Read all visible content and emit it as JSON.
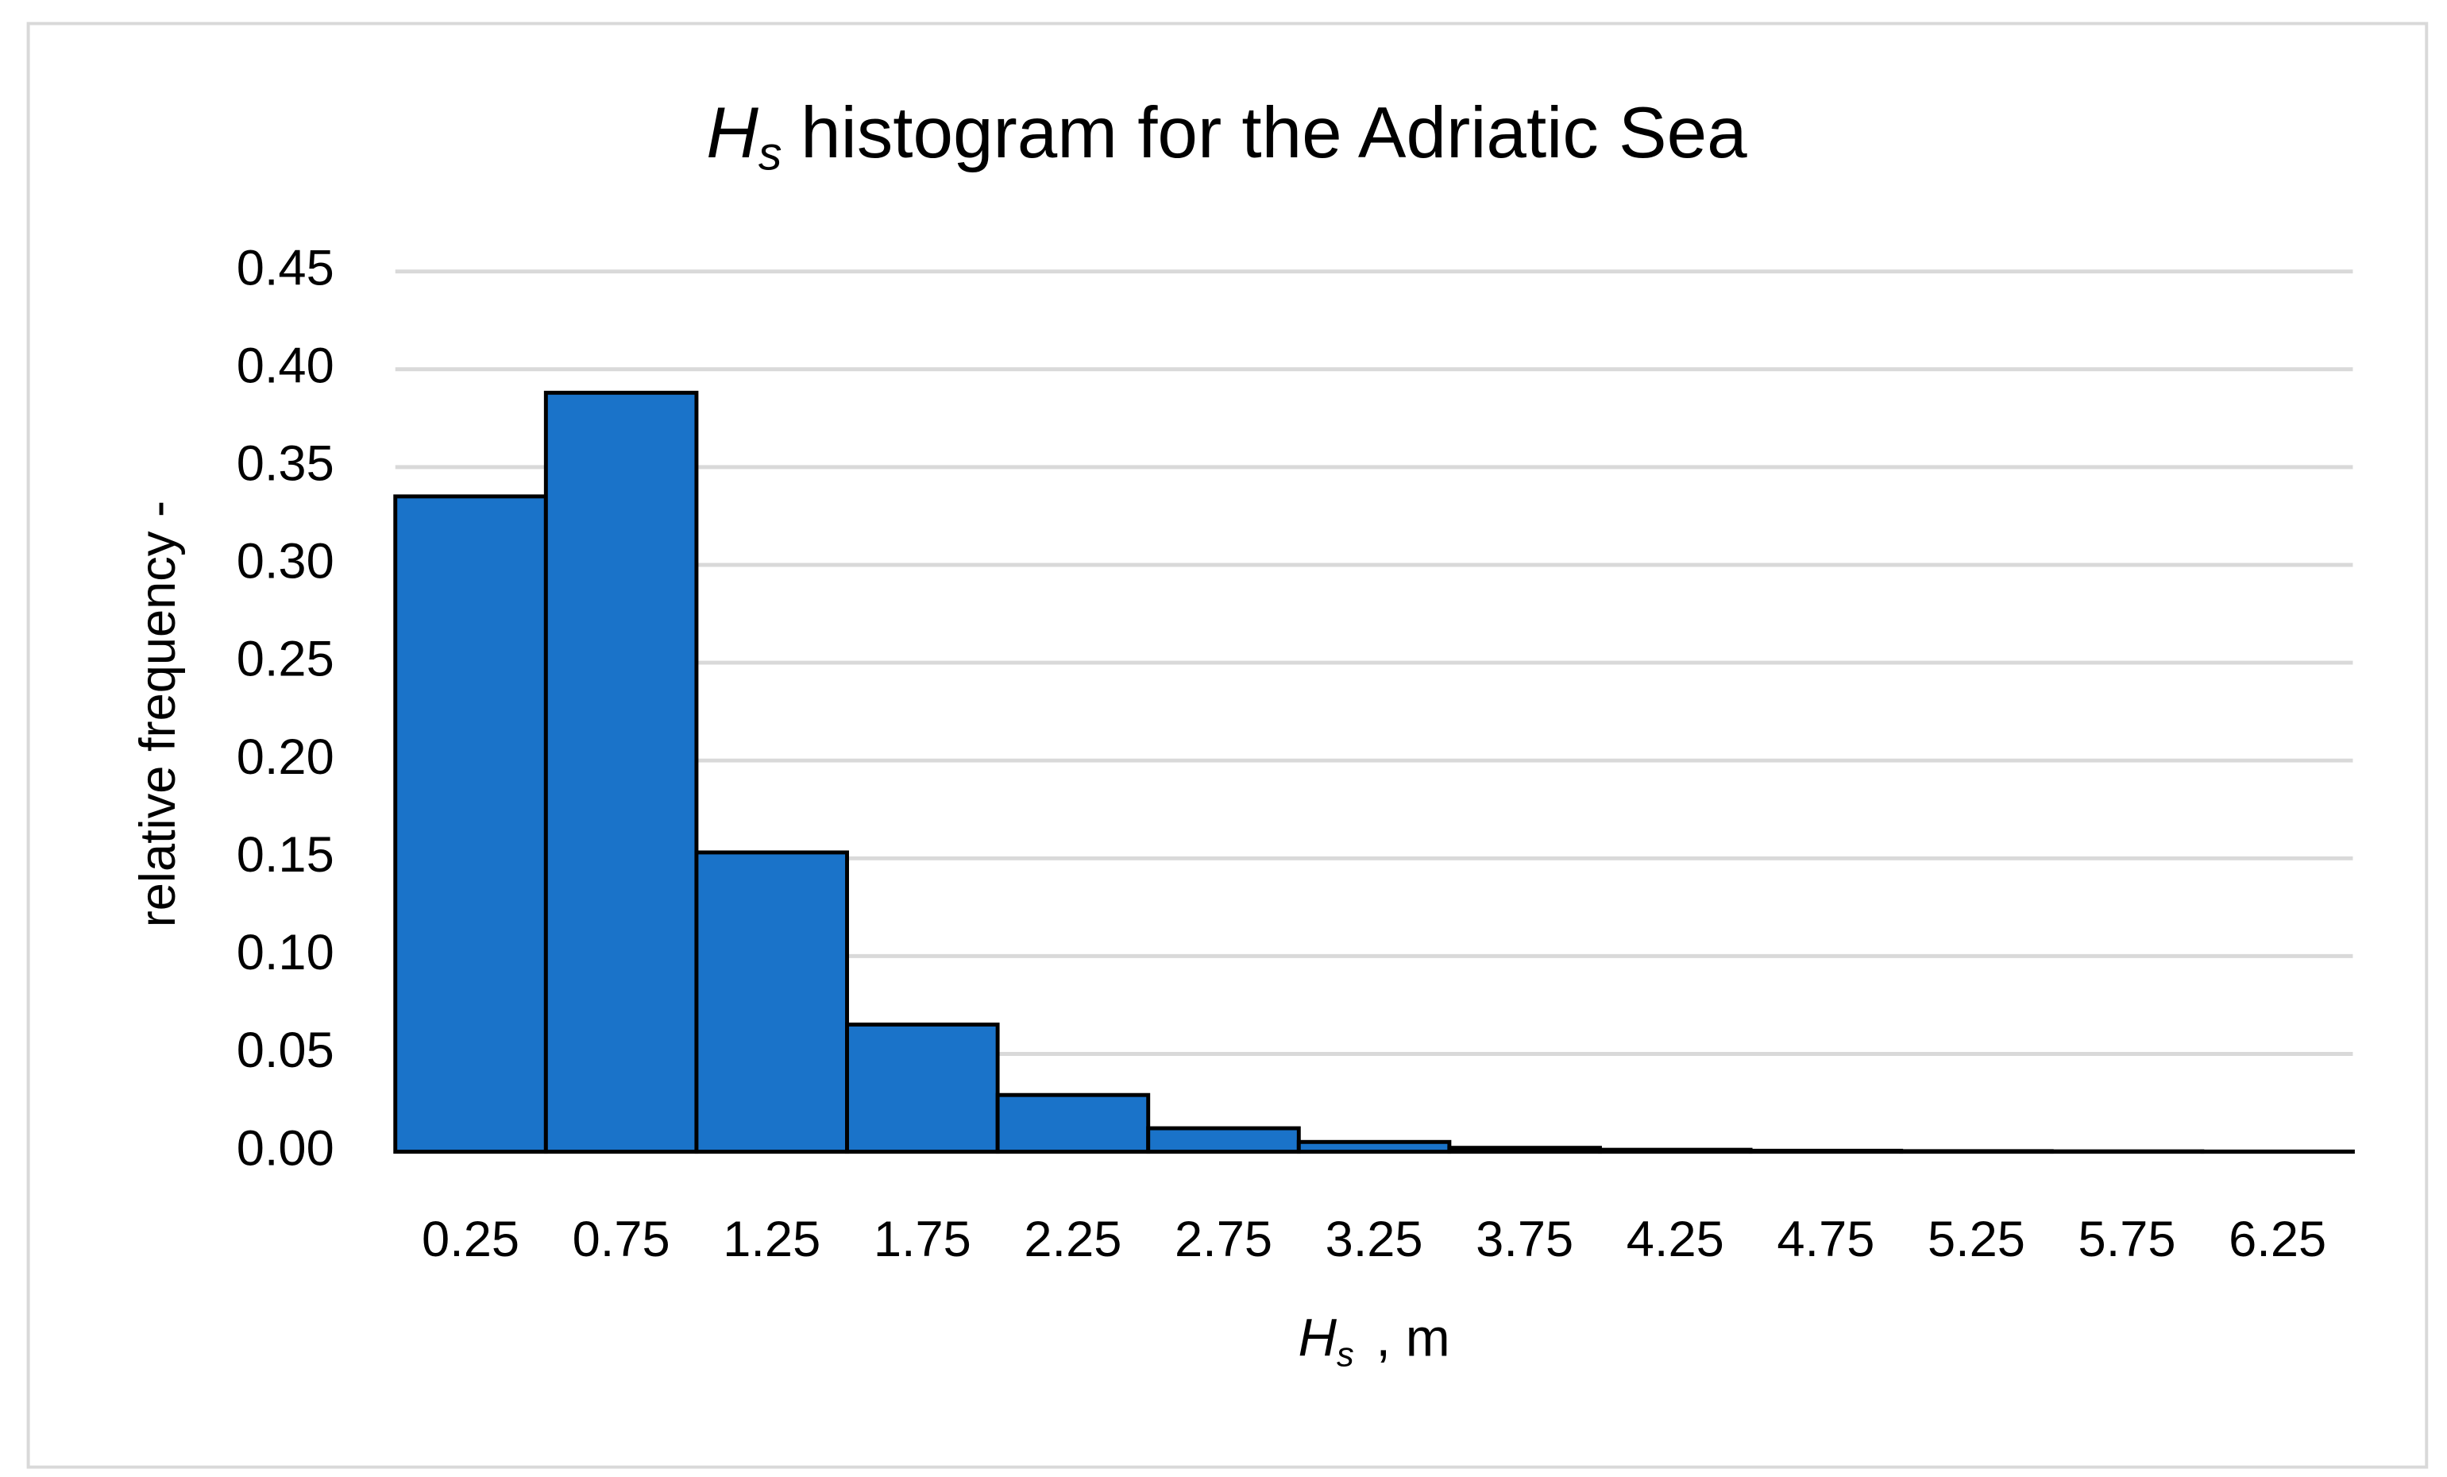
{
  "chart_data": {
    "type": "bar",
    "title": {
      "symbol": "H",
      "subscript": "s",
      "text": "histogram for the Adriatic Sea"
    },
    "x_label": {
      "symbol": "H",
      "subscript": "s",
      "text": ", m"
    },
    "y_label": "relative frequency -",
    "categories": [
      "0.25",
      "0.75",
      "1.25",
      "1.75",
      "2.25",
      "2.75",
      "3.25",
      "3.75",
      "4.25",
      "4.75",
      "5.25",
      "5.75",
      "6.25"
    ],
    "values": [
      0.335,
      0.388,
      0.153,
      0.065,
      0.029,
      0.012,
      0.005,
      0.002,
      0.001,
      0.0005,
      0.0003,
      0.0002,
      0.0001
    ],
    "color": "#1a73c9",
    "ylim": [
      0,
      0.45
    ],
    "yticks": [
      {
        "value": 0,
        "label": "0.00"
      },
      0.05,
      {
        "value": 0.1,
        "label": "0.10"
      },
      0.15,
      {
        "value": 0.2,
        "label": "0.20"
      },
      0.25,
      {
        "value": 0.3,
        "label": "0.30"
      },
      0.35,
      {
        "value": 0.4,
        "label": "0.40"
      },
      0.45
    ],
    "grid": true
  }
}
